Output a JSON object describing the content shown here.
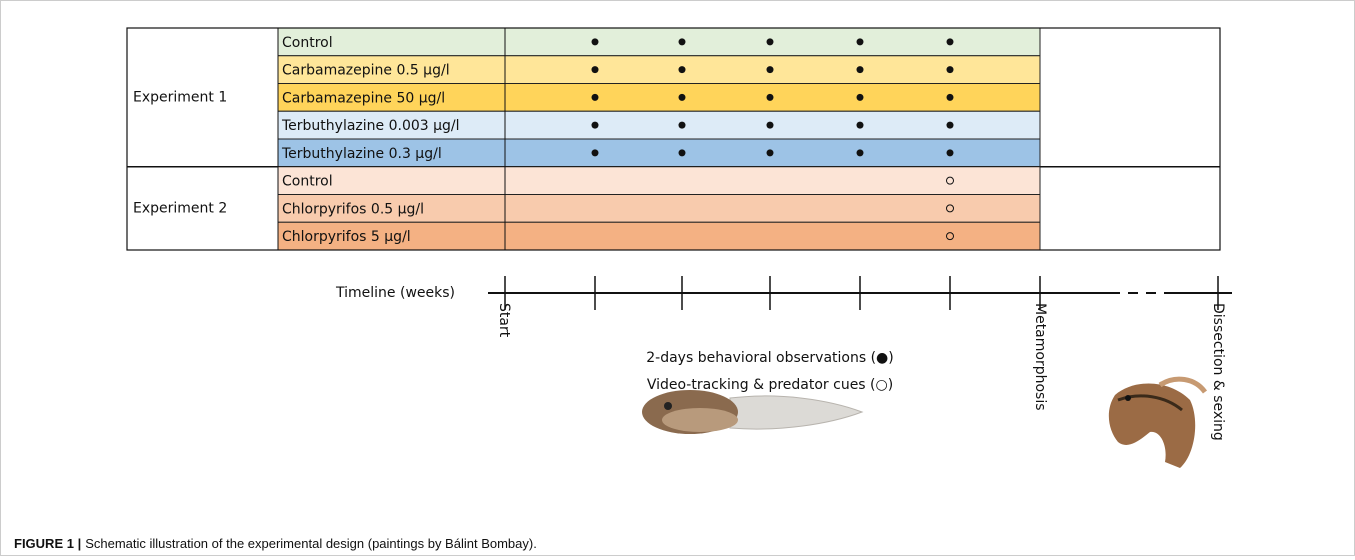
{
  "groups": [
    {
      "label": "Experiment 1",
      "rows": [
        {
          "treatment": "Control",
          "color": "#e2efda"
        },
        {
          "treatment": "Carbamazepine 0.5 µg/l",
          "color": "#ffe699"
        },
        {
          "treatment": "Carbamazepine 50 µg/l",
          "color": "#ffd45a"
        },
        {
          "treatment": "Terbuthylazine 0.003 µg/l",
          "color": "#ddebf7"
        },
        {
          "treatment": "Terbuthylazine 0.3 µg/l",
          "color": "#9dc3e6"
        }
      ]
    },
    {
      "label": "Experiment 2",
      "rows": [
        {
          "treatment": "Control",
          "color": "#fce4d6"
        },
        {
          "treatment": "Chlorpyrifos 0.5 µg/l",
          "color": "#f8cbad"
        },
        {
          "treatment": "Chlorpyrifos 5 µg/l",
          "color": "#f4b183"
        }
      ]
    }
  ],
  "timeline": {
    "label": "Timeline (weeks)",
    "milestones": [
      "Start",
      "Metamorphosis",
      "Dissection & sexing"
    ],
    "legend": [
      "2-days behavioral observations (●)",
      "Video-tracking & predator cues (○)"
    ]
  },
  "caption": {
    "label": "FIGURE 1 |",
    "text": "Schematic illustration of the experimental design (paintings by Bálint Bombay)."
  }
}
